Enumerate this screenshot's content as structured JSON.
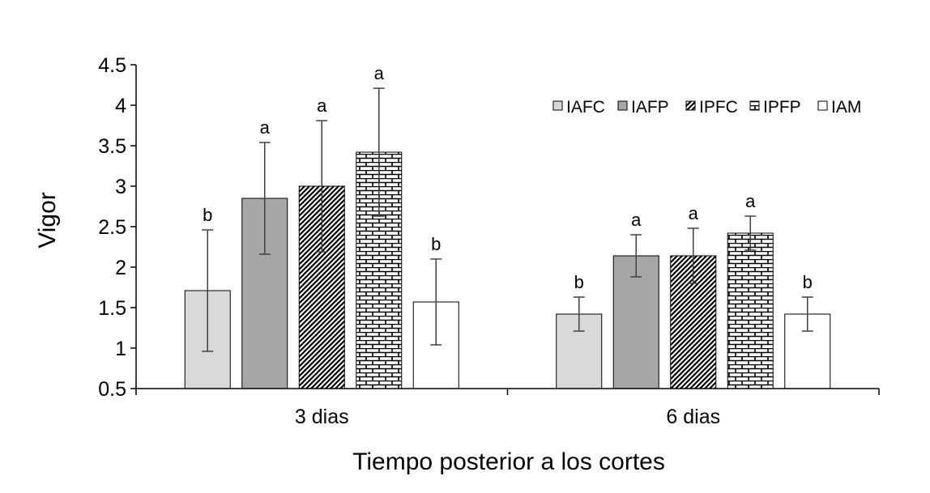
{
  "chart_data": {
    "type": "bar",
    "title": "",
    "xlabel": "Tiempo posterior a los cortes",
    "ylabel": "Vigor",
    "ylim": [
      0.5,
      4.5
    ],
    "yticks": [
      "0.5",
      "1",
      "1.5",
      "2",
      "2.5",
      "3",
      "3.5",
      "4",
      "4.5"
    ],
    "categories": [
      "3 dias",
      "6 dias"
    ],
    "legend_position": "top-right",
    "series": [
      {
        "name": "IAFC",
        "fill": "#d9d9d9",
        "pattern": "solid",
        "values": [
          1.71,
          1.42
        ],
        "err": [
          0.75,
          0.21
        ],
        "letters": [
          "b",
          "b"
        ]
      },
      {
        "name": "IAFP",
        "fill": "#a6a6a6",
        "pattern": "solid",
        "values": [
          2.85,
          2.14
        ],
        "err": [
          0.69,
          0.26
        ],
        "letters": [
          "a",
          "a"
        ]
      },
      {
        "name": "IPFC",
        "fill": "#ffffff",
        "pattern": "diagonal",
        "values": [
          3.0,
          2.14
        ],
        "err": [
          0.81,
          0.34
        ],
        "letters": [
          "a",
          "a"
        ]
      },
      {
        "name": "IPFP",
        "fill": "#ffffff",
        "pattern": "brick",
        "values": [
          3.42,
          2.42
        ],
        "err": [
          0.79,
          0.21
        ],
        "letters": [
          "a",
          "a"
        ]
      },
      {
        "name": "IAM",
        "fill": "#ffffff",
        "pattern": "solid",
        "values": [
          1.57,
          1.42
        ],
        "err": [
          0.53,
          0.21
        ],
        "letters": [
          "b",
          "b"
        ]
      }
    ]
  }
}
